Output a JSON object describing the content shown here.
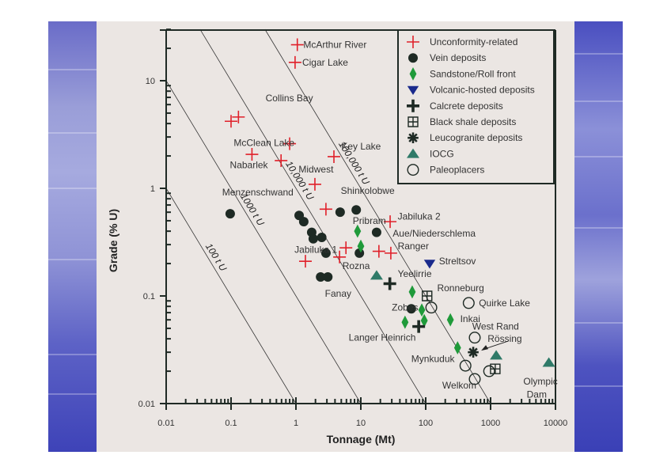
{
  "chart_data": {
    "type": "scatter",
    "title": "",
    "xlabel": "Tonnage (Mt)",
    "ylabel": "Grade (% U)",
    "xscale": "log",
    "yscale": "log",
    "xlim": [
      0.01,
      10000
    ],
    "ylim": [
      0.01,
      30
    ],
    "x_ticks": [
      0.01,
      0.1,
      1,
      10,
      100,
      1000,
      10000
    ],
    "x_tick_labels": [
      "0.01",
      "0.1",
      "1",
      "10",
      "100",
      "1000",
      "10000"
    ],
    "y_ticks": [
      0.01,
      0.1,
      1,
      10
    ],
    "y_tick_labels": [
      "0.01",
      "0.1",
      "1",
      "10"
    ],
    "grid": false,
    "legend_position": "top-right",
    "iso_lines": [
      {
        "label": "100 t U",
        "tonnes_u": 100
      },
      {
        "label": "1000 t U",
        "tonnes_u": 1000
      },
      {
        "label": "10,000 t U",
        "tonnes_u": 10000
      },
      {
        "label": "100,000 t U",
        "tonnes_u": 100000
      }
    ],
    "series": [
      {
        "name": "Unconformity-related",
        "marker": "plus",
        "color": "#e0202a",
        "points": [
          {
            "x": 1.05,
            "y": 21.6
          },
          {
            "x": 0.97,
            "y": 14.8
          },
          {
            "x": 0.1,
            "y": 4.2
          },
          {
            "x": 0.13,
            "y": 4.6
          },
          {
            "x": 0.8,
            "y": 2.6
          },
          {
            "x": 0.21,
            "y": 2.07
          },
          {
            "x": 0.59,
            "y": 1.81
          },
          {
            "x": 3.85,
            "y": 1.97
          },
          {
            "x": 1.96,
            "y": 1.09
          },
          {
            "x": 2.9,
            "y": 0.64
          },
          {
            "x": 28.3,
            "y": 0.49
          },
          {
            "x": 1.4,
            "y": 0.21
          },
          {
            "x": 5.9,
            "y": 0.28
          },
          {
            "x": 4.7,
            "y": 0.23
          },
          {
            "x": 19,
            "y": 0.26
          },
          {
            "x": 29,
            "y": 0.25
          }
        ]
      },
      {
        "name": "Vein deposits",
        "marker": "circle-filled",
        "color": "#1e2a24",
        "points": [
          {
            "x": 0.097,
            "y": 0.58
          },
          {
            "x": 1.12,
            "y": 0.56
          },
          {
            "x": 1.32,
            "y": 0.49
          },
          {
            "x": 1.75,
            "y": 0.39
          },
          {
            "x": 1.85,
            "y": 0.34
          },
          {
            "x": 2.5,
            "y": 0.35
          },
          {
            "x": 2.9,
            "y": 0.25
          },
          {
            "x": 2.4,
            "y": 0.15
          },
          {
            "x": 3.1,
            "y": 0.15
          },
          {
            "x": 4.8,
            "y": 0.6
          },
          {
            "x": 8.5,
            "y": 0.63
          },
          {
            "x": 17.5,
            "y": 0.39
          },
          {
            "x": 9.5,
            "y": 0.25
          },
          {
            "x": 60,
            "y": 0.076
          }
        ]
      },
      {
        "name": "Sandstone/Roll front",
        "marker": "diamond",
        "color": "#1f9a3a",
        "points": [
          {
            "x": 8.9,
            "y": 0.4
          },
          {
            "x": 10,
            "y": 0.29
          },
          {
            "x": 62,
            "y": 0.109
          },
          {
            "x": 48,
            "y": 0.057
          },
          {
            "x": 87,
            "y": 0.074
          },
          {
            "x": 95,
            "y": 0.059
          },
          {
            "x": 240,
            "y": 0.06
          },
          {
            "x": 310,
            "y": 0.033
          }
        ]
      },
      {
        "name": "Volcanic-hosted deposits",
        "marker": "triangle-down",
        "color": "#1a2a8c",
        "points": [
          {
            "x": 115,
            "y": 0.2
          }
        ]
      },
      {
        "name": "Calcrete deposits",
        "marker": "plus-bold",
        "color": "#1e2a24",
        "points": [
          {
            "x": 28,
            "y": 0.13
          },
          {
            "x": 78,
            "y": 0.052
          }
        ]
      },
      {
        "name": "Black shale deposits",
        "marker": "square-grid",
        "color": "#1e2a24",
        "points": [
          {
            "x": 105,
            "y": 0.1
          },
          {
            "x": 1180,
            "y": 0.021
          }
        ]
      },
      {
        "name": "Leucogranite deposits",
        "marker": "asterisk",
        "color": "#1e2a24",
        "points": [
          {
            "x": 540,
            "y": 0.03
          }
        ]
      },
      {
        "name": "IOCG",
        "marker": "triangle-up",
        "color": "#2f7a68",
        "points": [
          {
            "x": 17.5,
            "y": 0.155
          },
          {
            "x": 1220,
            "y": 0.028
          },
          {
            "x": 7900,
            "y": 0.024
          }
        ]
      },
      {
        "name": "Paleoplacers",
        "marker": "circle-open",
        "color": "#1e2a24",
        "points": [
          {
            "x": 460,
            "y": 0.086
          },
          {
            "x": 570,
            "y": 0.041
          },
          {
            "x": 122,
            "y": 0.078
          },
          {
            "x": 410,
            "y": 0.0225
          },
          {
            "x": 570,
            "y": 0.0169
          },
          {
            "x": 950,
            "y": 0.02
          }
        ]
      }
    ],
    "annotations": [
      {
        "text": "McArthur River",
        "x": 1.3,
        "y": 21.6
      },
      {
        "text": "Cigar Lake",
        "x": 1.25,
        "y": 14.8
      },
      {
        "text": "Collins Bay",
        "x": 0.34,
        "y": 6.9
      },
      {
        "text": "McClean Lake",
        "x": 0.11,
        "y": 2.65
      },
      {
        "text": "Nabarlek",
        "x": 0.096,
        "y": 1.65
      },
      {
        "text": "Key Lake",
        "x": 5.0,
        "y": 2.45
      },
      {
        "text": "Midwest",
        "x": 1.1,
        "y": 1.5
      },
      {
        "text": "Menzenschwand",
        "x": 0.073,
        "y": 0.92
      },
      {
        "text": "Shinkolobwe",
        "x": 4.9,
        "y": 0.95
      },
      {
        "text": "Pribram",
        "x": 7.5,
        "y": 0.5
      },
      {
        "text": "Jabiluka 2",
        "x": 37,
        "y": 0.55
      },
      {
        "text": "Aue/Niederschlema",
        "x": 31,
        "y": 0.38
      },
      {
        "text": "Jabiluka 1",
        "x": 0.95,
        "y": 0.27
      },
      {
        "text": "Ranger",
        "x": 37,
        "y": 0.29
      },
      {
        "text": "Rozna",
        "x": 5.2,
        "y": 0.19
      },
      {
        "text": "Streltsov",
        "x": 160,
        "y": 0.21
      },
      {
        "text": "Yeelirrie",
        "x": 37,
        "y": 0.16
      },
      {
        "text": "Fanay",
        "x": 2.8,
        "y": 0.105
      },
      {
        "text": "Ronneburg",
        "x": 150,
        "y": 0.118
      },
      {
        "text": "Quirke Lake",
        "x": 660,
        "y": 0.086
      },
      {
        "text": "Zobes",
        "x": 30,
        "y": 0.078
      },
      {
        "text": "Inkai",
        "x": 340,
        "y": 0.061
      },
      {
        "text": "West Rand",
        "x": 520,
        "y": 0.052
      },
      {
        "text": "Langer Heinrich",
        "x": 6.5,
        "y": 0.041
      },
      {
        "text": "Rössing",
        "x": 900,
        "y": 0.04
      },
      {
        "text": "Mynkuduk",
        "x": 60,
        "y": 0.026
      },
      {
        "text": "Olympic",
        "x": 3200,
        "y": 0.016
      },
      {
        "text": "Dam",
        "x": 3600,
        "y": 0.0122
      },
      {
        "text": "Welkom",
        "x": 180,
        "y": 0.0148
      }
    ]
  }
}
